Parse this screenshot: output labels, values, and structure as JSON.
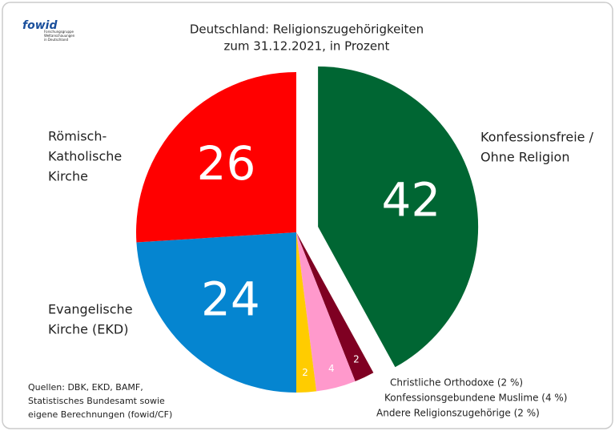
{
  "chart_data": {
    "type": "pie",
    "title": "Deutschland: Religionszugehörigkeiten",
    "subtitle": "zum 31.12.2021, in Prozent",
    "logo": "fowid",
    "logo_subtitle": [
      "Forschungsgruppe",
      "Weltanschauungen",
      "in Deutschland"
    ],
    "source": [
      "Quellen: DBK, EKD, BAMF,",
      "Statistisches Bundesamt sowie",
      "eigene Berechnungen (fowid/CF)"
    ],
    "categories": [
      [
        "Konfessionsfreie /",
        "Ohne Religion"
      ],
      [
        "Andere Religionszugehörige (2 %)"
      ],
      [
        "Konfessionsgebundene Muslime (4 %)"
      ],
      [
        "Christliche Orthodoxe (2 %)"
      ],
      [
        "Evangelische",
        "Kirche (EKD)"
      ],
      [
        "Römisch-",
        "Katholische",
        "Kirche"
      ]
    ],
    "values": [
      42,
      2,
      4,
      2,
      24,
      26
    ],
    "colors": [
      "#006633",
      "#7f0022",
      "#ff99cc",
      "#ffcc00",
      "#0585d0",
      "#ff0000"
    ],
    "exploded": [
      true,
      false,
      false,
      false,
      false,
      false
    ]
  }
}
